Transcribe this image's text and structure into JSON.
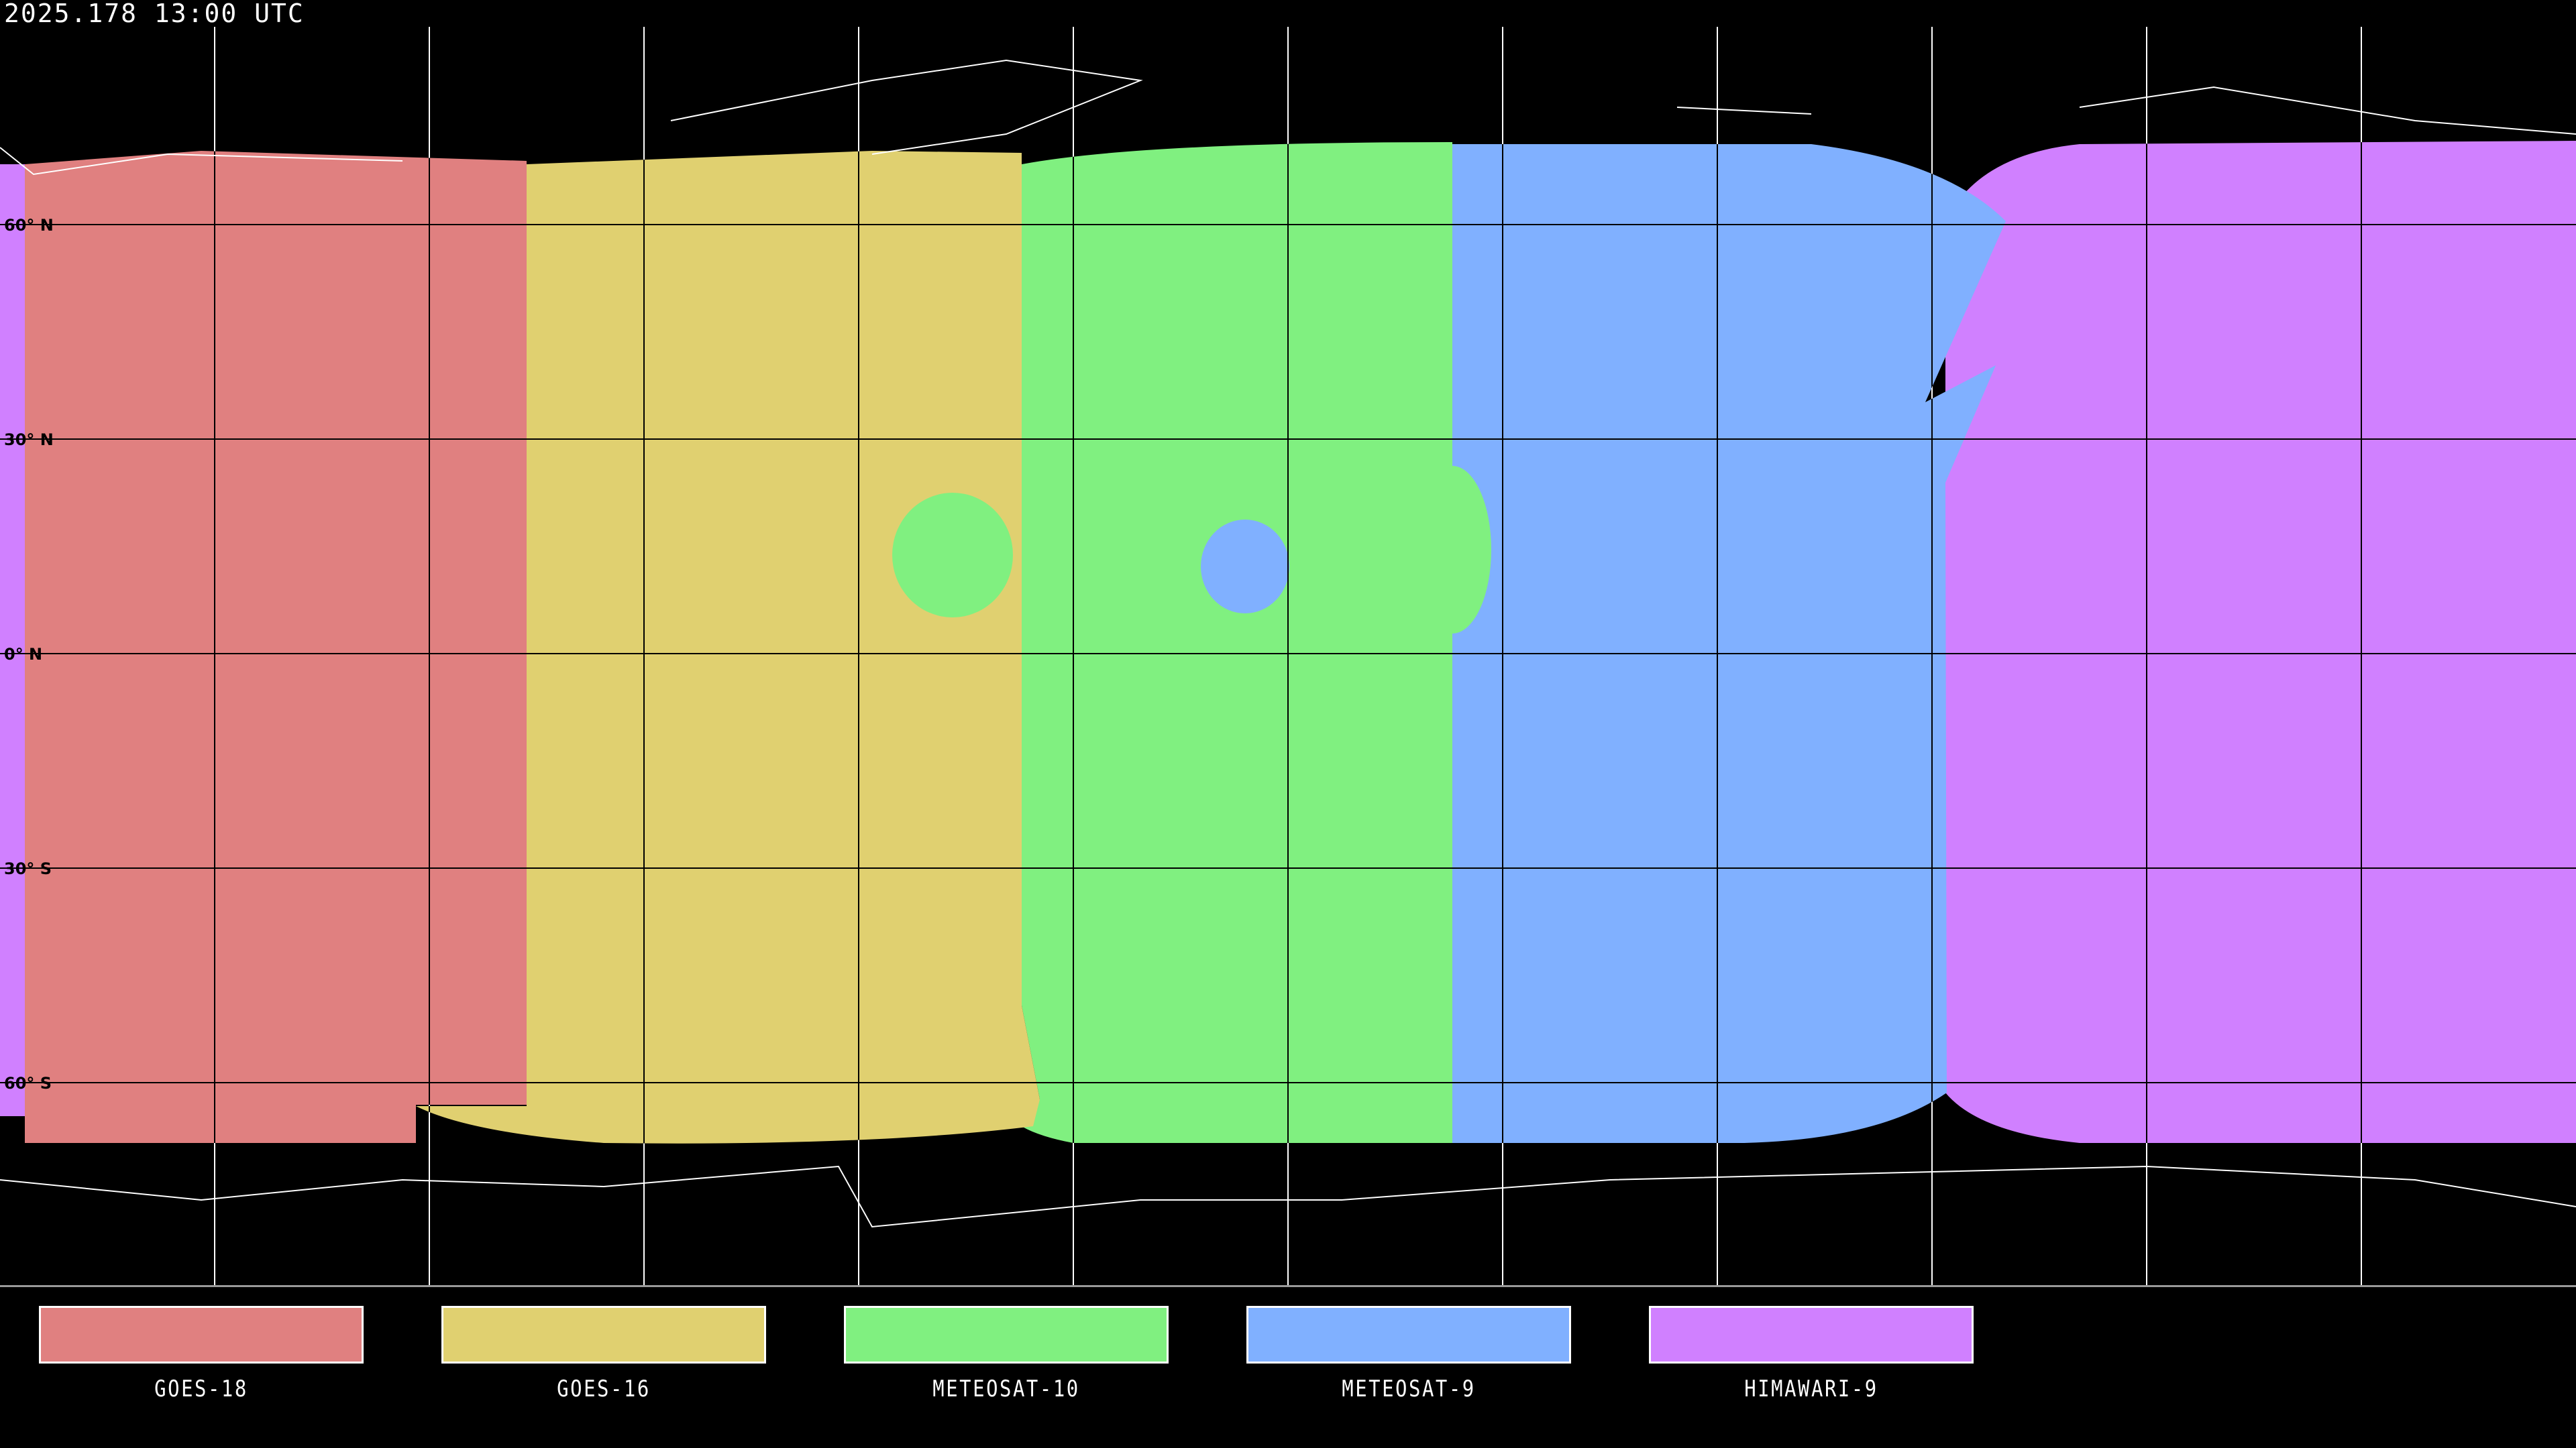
{
  "header": {
    "timestamp": "2025.178 13:00 UTC"
  },
  "map": {
    "projection": "equirectangular",
    "graticule_spacing_deg": 30,
    "lat_labels": [
      "60° N",
      "30° N",
      "0° N",
      "30° S",
      "60° S"
    ],
    "background_color": "#000000",
    "coverage": [
      {
        "satellite": "GOES-18",
        "color": "#e08080"
      },
      {
        "satellite": "GOES-16",
        "color": "#e0d070"
      },
      {
        "satellite": "METEOSAT-10",
        "color": "#80f080"
      },
      {
        "satellite": "METEOSAT-9",
        "color": "#80b0ff"
      },
      {
        "satellite": "HIMAWARI-9",
        "color": "#d080ff"
      }
    ]
  },
  "legend": {
    "items": [
      {
        "label": "GOES-18",
        "color": "#e08080"
      },
      {
        "label": "GOES-16",
        "color": "#e0d070"
      },
      {
        "label": "METEOSAT-10",
        "color": "#80f080"
      },
      {
        "label": "METEOSAT-9",
        "color": "#80b0ff"
      },
      {
        "label": "HIMAWARI-9",
        "color": "#d080ff"
      }
    ]
  }
}
